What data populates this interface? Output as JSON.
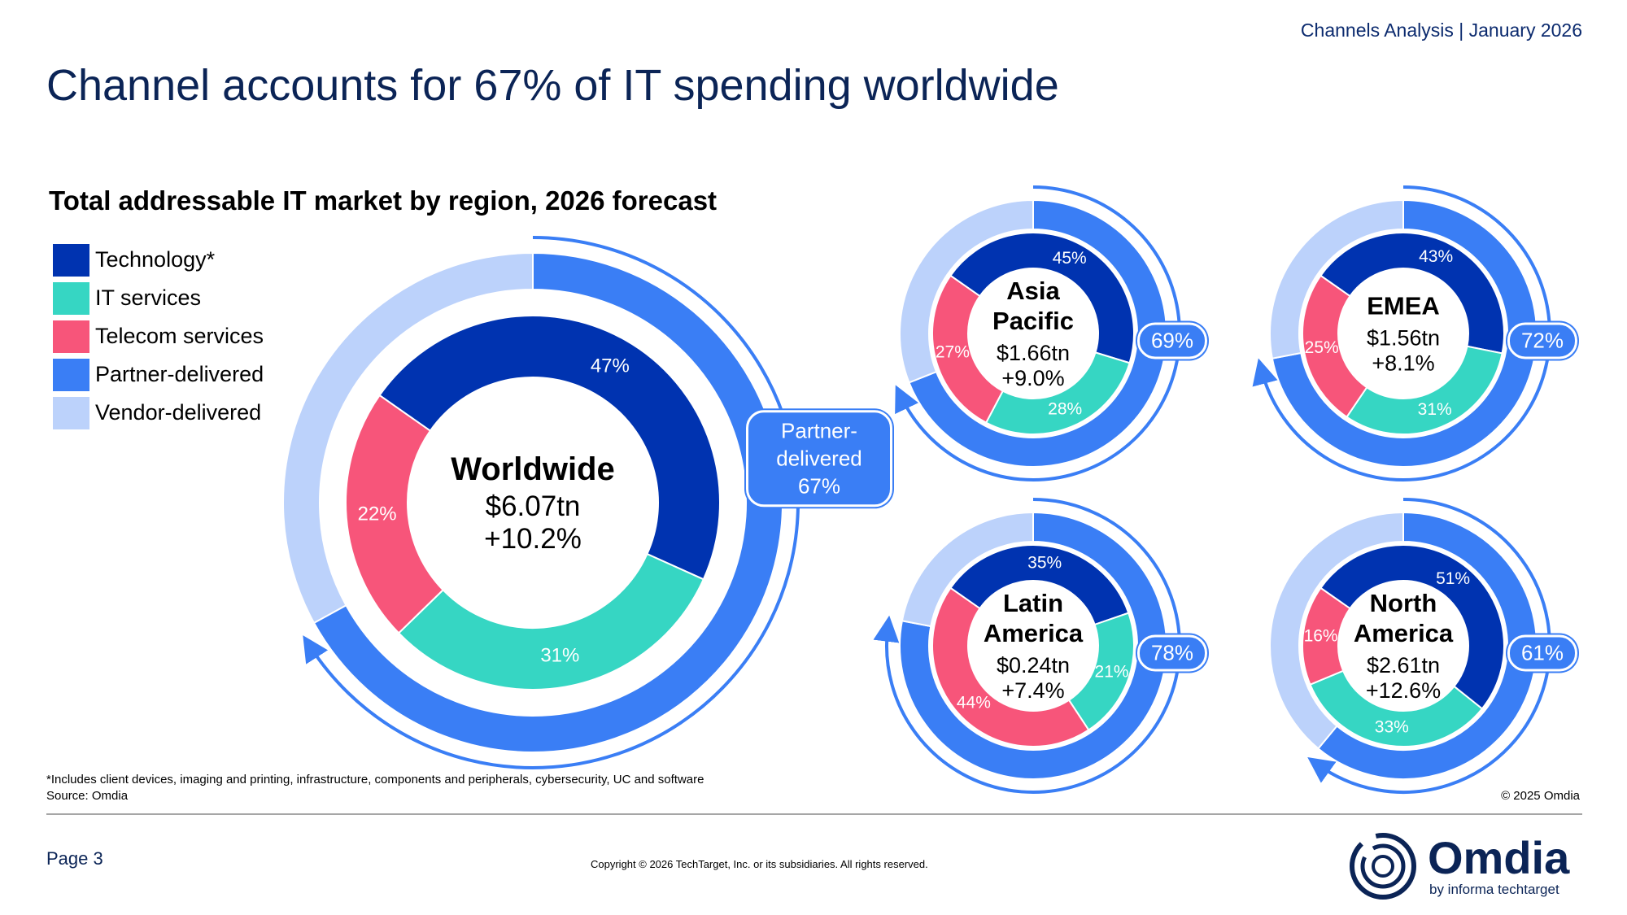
{
  "header": {
    "report": "Channels Analysis | January 2026",
    "title": "Channel accounts for 67% of IT spending worldwide"
  },
  "chart_data": [
    {
      "type": "donut",
      "title": "Total addressable IT market by region, 2026 forecast",
      "label": "Worldwide",
      "total": "$6.07tn",
      "growth": "+10.2%",
      "inner": {
        "categories": [
          "Technology*",
          "IT services",
          "Telecom services"
        ],
        "colors": [
          "#0033b0",
          "#36d6c3",
          "#f7557a"
        ],
        "values": [
          47,
          31,
          22
        ],
        "value_labels": [
          "47%",
          "31%",
          "22%"
        ]
      },
      "outer": {
        "categories": [
          "Partner-delivered",
          "Vendor-delivered"
        ],
        "colors": [
          "#3a7ef5",
          "#bcd2fb"
        ],
        "values": [
          67,
          33
        ],
        "value_labels": [
          "67%",
          null
        ]
      }
    },
    {
      "type": "donut",
      "label": "Asia Pacific",
      "total": "$1.66tn",
      "growth": "+9.0%",
      "inner": {
        "values": [
          45,
          28,
          27
        ],
        "value_labels": [
          "45%",
          "28%",
          "27%"
        ]
      },
      "outer": {
        "values": [
          69,
          31
        ],
        "value_labels": [
          "69%",
          null
        ]
      }
    },
    {
      "type": "donut",
      "label": "EMEA",
      "total": "$1.56tn",
      "growth": "+8.1%",
      "inner": {
        "values": [
          43,
          31,
          25
        ],
        "value_labels": [
          "43%",
          "31%",
          "25%"
        ]
      },
      "outer": {
        "values": [
          72,
          28
        ],
        "value_labels": [
          "72%",
          null
        ]
      }
    },
    {
      "type": "donut",
      "label": "Latin America",
      "total": "$0.24tn",
      "growth": "+7.4%",
      "inner": {
        "values": [
          35,
          21,
          44
        ],
        "value_labels": [
          "35%",
          "21%",
          "44%"
        ]
      },
      "outer": {
        "values": [
          78,
          22
        ],
        "value_labels": [
          "78%",
          null
        ]
      }
    },
    {
      "type": "donut",
      "label": "North America",
      "total": "$2.61tn",
      "growth": "+12.6%",
      "inner": {
        "values": [
          51,
          33,
          16
        ],
        "value_labels": [
          "51%",
          "33%",
          "16%"
        ]
      },
      "outer": {
        "values": [
          61,
          39
        ],
        "value_labels": [
          "61%",
          null
        ]
      }
    }
  ],
  "footer": {
    "note": "*Includes client devices, imaging and printing, infrastructure, components and peripherals, cybersecurity, UC and software",
    "source": "Source: Omdia",
    "credit": "© 2025 Omdia",
    "page": "Page 3",
    "copyright": "Copyright © 2026 TechTarget, Inc. or its subsidiaries. All rights reserved.",
    "logo": "Omdia",
    "logo_sub": "by informa techtarget"
  }
}
